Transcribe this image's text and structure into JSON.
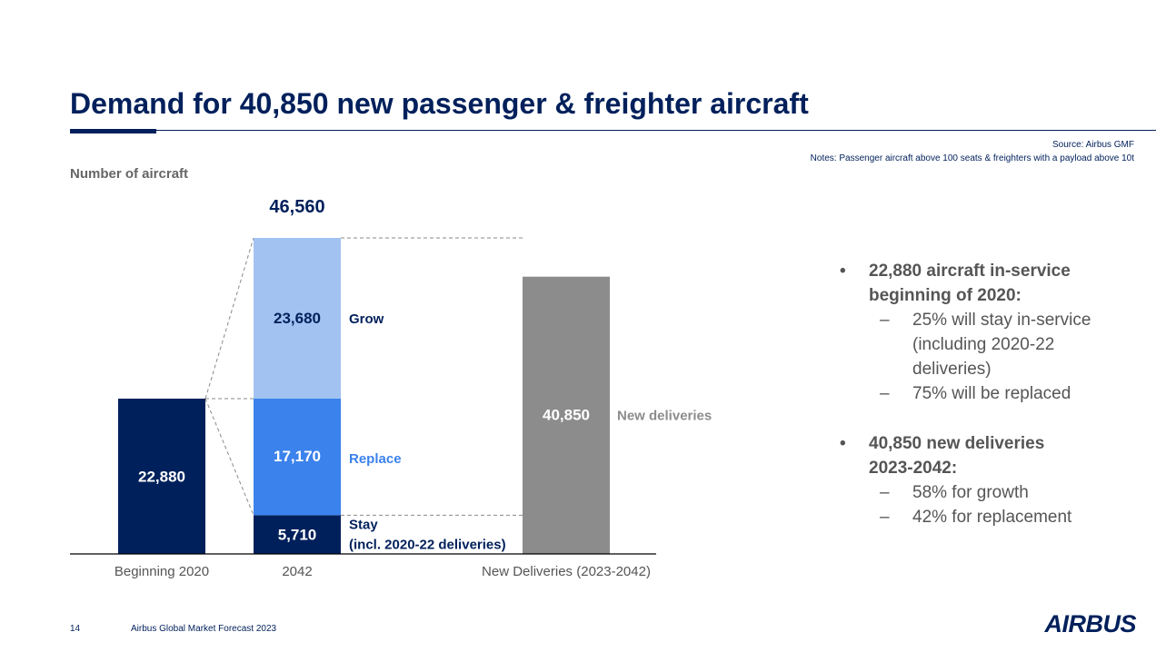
{
  "header": {
    "title": "Demand for 40,850 new passenger & freighter aircraft",
    "source": "Source: Airbus GMF",
    "notes": "Notes: Passenger aircraft above 100 seats & freighters with a payload above 10t"
  },
  "chart_data": {
    "type": "bar",
    "ylabel": "Number of aircraft",
    "categories": [
      "Beginning 2020",
      "2042",
      "New Deliveries (2023-2042)"
    ],
    "total_2042": "46,560",
    "bars": [
      {
        "category": "Beginning 2020",
        "value": 22880,
        "label": "22,880",
        "color": "#00205b"
      },
      {
        "category": "New Deliveries (2023-2042)",
        "value": 40850,
        "label": "40,850",
        "color": "#8c8c8c",
        "side_label": "New deliveries"
      }
    ],
    "stack_2042": [
      {
        "name": "Stay",
        "value": 5710,
        "label": "5,710",
        "color": "#00205b",
        "side_label": "Stay",
        "side_label_2": "(incl. 2020-22 deliveries)"
      },
      {
        "name": "Replace",
        "value": 17170,
        "label": "17,170",
        "color": "#3b82ec",
        "side_label": "Replace"
      },
      {
        "name": "Grow",
        "value": 23680,
        "label": "23,680",
        "color": "#a2c2f2",
        "side_label": "Grow"
      }
    ]
  },
  "bullets": [
    {
      "text_line1": "22,880 aircraft in-service",
      "text_line2": "beginning of 2020:",
      "subs": [
        [
          "25% will stay in-service",
          "(including 2020-22",
          "deliveries)"
        ],
        [
          "75% will be replaced"
        ]
      ]
    },
    {
      "text_line1": "40,850 new deliveries",
      "text_line2": "2023-2042:",
      "subs": [
        [
          "58% for growth"
        ],
        [
          "42% for replacement"
        ]
      ]
    }
  ],
  "footer": {
    "page": "14",
    "text": "Airbus Global Market Forecast 2023",
    "logo": "AIRBUS"
  }
}
